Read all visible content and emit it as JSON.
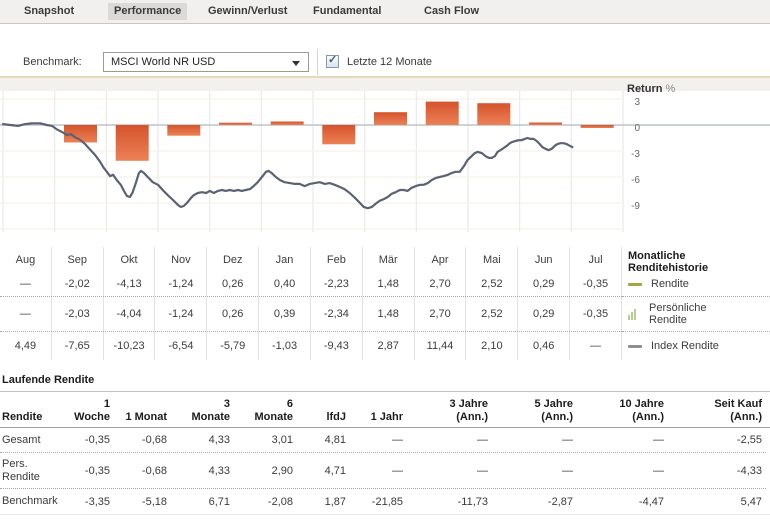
{
  "tabs": {
    "items": [
      {
        "label": "Snapshot",
        "active": false
      },
      {
        "label": "Performance",
        "active": true
      },
      {
        "label": "Gewinn/Verlust",
        "active": false
      },
      {
        "label": "Fundamental",
        "active": false
      },
      {
        "label": "Cash Flow",
        "active": false
      }
    ]
  },
  "benchmark": {
    "label": "Benchmark:",
    "selected": "MSCI World NR USD",
    "checkbox_label": "Letzte 12 Monate",
    "checked": true
  },
  "chart_data": {
    "type": "bar+line",
    "y_axis_title": "Return",
    "y_axis_unit": "%",
    "y_ticks": [
      3,
      0,
      -3,
      -6,
      -9
    ],
    "ylim": [
      -12.4,
      3.9
    ],
    "grid": true,
    "legend_position": "right-of-table",
    "categories": [
      "Aug",
      "Sep",
      "Okt",
      "Nov",
      "Dez",
      "Jan",
      "Feb",
      "Mär",
      "Apr",
      "Mai",
      "Jun",
      "Jul"
    ],
    "bar_series": {
      "name": "Rendite",
      "color_top": "#d5532c",
      "color_bottom": "#ec8156",
      "values": [
        null,
        -2.02,
        -4.13,
        -1.24,
        0.26,
        0.4,
        -2.23,
        1.48,
        2.7,
        2.52,
        0.29,
        -0.35
      ]
    },
    "line_series": {
      "name": "Index Rendite",
      "color": "#5a6274",
      "points": [
        [
          0,
          0.1
        ],
        [
          0.14,
          0
        ],
        [
          0.29,
          -0.1
        ],
        [
          0.43,
          0.1
        ],
        [
          0.56,
          0.2
        ],
        [
          0.72,
          0.2
        ],
        [
          0.85,
          0
        ],
        [
          0.95,
          -0.1
        ],
        [
          1.04,
          -0.5
        ],
        [
          1.14,
          -0.8
        ],
        [
          1.24,
          -1.15
        ],
        [
          1.32,
          -1.05
        ],
        [
          1.39,
          -1.4
        ],
        [
          1.49,
          -1.7
        ],
        [
          1.59,
          -2.2
        ],
        [
          1.68,
          -2.8
        ],
        [
          1.78,
          -3.45
        ],
        [
          1.88,
          -4.25
        ],
        [
          1.95,
          -4.95
        ],
        [
          2.01,
          -5.4
        ],
        [
          2.07,
          -5.9
        ],
        [
          2.13,
          -5.75
        ],
        [
          2.2,
          -6.35
        ],
        [
          2.28,
          -6.9
        ],
        [
          2.34,
          -7.6
        ],
        [
          2.4,
          -8.2
        ],
        [
          2.46,
          -8.3
        ],
        [
          2.51,
          -7.75
        ],
        [
          2.57,
          -6.7
        ],
        [
          2.63,
          -5.55
        ],
        [
          2.67,
          -5.3
        ],
        [
          2.73,
          -5.55
        ],
        [
          2.8,
          -6
        ],
        [
          2.9,
          -6.6
        ],
        [
          3,
          -6.9
        ],
        [
          3.09,
          -7.5
        ],
        [
          3.19,
          -8.1
        ],
        [
          3.29,
          -8.65
        ],
        [
          3.39,
          -9.25
        ],
        [
          3.44,
          -9.45
        ],
        [
          3.5,
          -9.35
        ],
        [
          3.56,
          -9
        ],
        [
          3.64,
          -8.4
        ],
        [
          3.69,
          -8.1
        ],
        [
          3.77,
          -7.85
        ],
        [
          3.85,
          -7.75
        ],
        [
          3.93,
          -7.85
        ],
        [
          4,
          -7.6
        ],
        [
          4.08,
          -7.85
        ],
        [
          4.16,
          -7.6
        ],
        [
          4.24,
          -7.5
        ],
        [
          4.31,
          -7.6
        ],
        [
          4.39,
          -7.5
        ],
        [
          4.47,
          -7.6
        ],
        [
          4.55,
          -7.5
        ],
        [
          4.62,
          -7.6
        ],
        [
          4.7,
          -7.5
        ],
        [
          4.78,
          -7.4
        ],
        [
          4.85,
          -7.05
        ],
        [
          4.93,
          -6.6
        ],
        [
          5.01,
          -6
        ],
        [
          5.09,
          -5.4
        ],
        [
          5.14,
          -5.3
        ],
        [
          5.2,
          -5.55
        ],
        [
          5.28,
          -6
        ],
        [
          5.36,
          -6.35
        ],
        [
          5.45,
          -6.6
        ],
        [
          5.55,
          -6.7
        ],
        [
          5.65,
          -6.8
        ],
        [
          5.74,
          -6.8
        ],
        [
          5.84,
          -7.05
        ],
        [
          5.94,
          -6.8
        ],
        [
          6.03,
          -6.7
        ],
        [
          6.13,
          -6.6
        ],
        [
          6.23,
          -6.8
        ],
        [
          6.32,
          -6.7
        ],
        [
          6.42,
          -6.9
        ],
        [
          6.52,
          -7.15
        ],
        [
          6.61,
          -7.4
        ],
        [
          6.71,
          -7.85
        ],
        [
          6.81,
          -8.4
        ],
        [
          6.91,
          -9
        ],
        [
          6.98,
          -9.45
        ],
        [
          7.06,
          -9.6
        ],
        [
          7.14,
          -9.45
        ],
        [
          7.21,
          -9.1
        ],
        [
          7.29,
          -8.75
        ],
        [
          7.37,
          -8.55
        ],
        [
          7.45,
          -8.3
        ],
        [
          7.52,
          -7.95
        ],
        [
          7.6,
          -7.75
        ],
        [
          7.68,
          -7.5
        ],
        [
          7.76,
          -7.5
        ],
        [
          7.83,
          -7.6
        ],
        [
          7.91,
          -7.25
        ],
        [
          7.99,
          -7.05
        ],
        [
          8.07,
          -6.9
        ],
        [
          8.14,
          -6.9
        ],
        [
          8.22,
          -6.7
        ],
        [
          8.3,
          -6.35
        ],
        [
          8.38,
          -6.1
        ],
        [
          8.45,
          -6
        ],
        [
          8.53,
          -5.9
        ],
        [
          8.61,
          -5.75
        ],
        [
          8.68,
          -5.55
        ],
        [
          8.76,
          -5.4
        ],
        [
          8.84,
          -5.4
        ],
        [
          8.92,
          -4.75
        ],
        [
          8.99,
          -4.05
        ],
        [
          9.07,
          -3.6
        ],
        [
          9.13,
          -3.25
        ],
        [
          9.19,
          -3.1
        ],
        [
          9.27,
          -3.25
        ],
        [
          9.34,
          -3.6
        ],
        [
          9.4,
          -3.8
        ],
        [
          9.46,
          -3.8
        ],
        [
          9.52,
          -3.6
        ],
        [
          9.57,
          -3.1
        ],
        [
          9.63,
          -2.9
        ],
        [
          9.69,
          -2.65
        ],
        [
          9.75,
          -2.4
        ],
        [
          9.81,
          -2.1
        ],
        [
          9.86,
          -1.95
        ],
        [
          9.92,
          -1.85
        ],
        [
          9.98,
          -1.75
        ],
        [
          10.04,
          -1.75
        ],
        [
          10.1,
          -1.6
        ],
        [
          10.15,
          -1.5
        ],
        [
          10.21,
          -1.6
        ],
        [
          10.27,
          -1.6
        ],
        [
          10.33,
          -1.85
        ],
        [
          10.39,
          -2.2
        ],
        [
          10.44,
          -2.55
        ],
        [
          10.5,
          -2.75
        ],
        [
          10.56,
          -2.9
        ],
        [
          10.62,
          -2.75
        ],
        [
          10.68,
          -2.4
        ],
        [
          10.73,
          -2.2
        ],
        [
          10.79,
          -2.1
        ],
        [
          10.85,
          -2.1
        ],
        [
          10.91,
          -2.2
        ],
        [
          10.97,
          -2.4
        ],
        [
          11.02,
          -2.55
        ]
      ]
    },
    "colors": {
      "zero_line": "#aeb9bb",
      "v_grid": "#e8e6e1",
      "h_grid": "#f5eee4"
    }
  },
  "monthly_table": {
    "columns": [
      "Aug",
      "Sep",
      "Okt",
      "Nov",
      "Dez",
      "Jan",
      "Feb",
      "Mär",
      "Apr",
      "Mai",
      "Jun",
      "Jul"
    ],
    "rows": [
      {
        "name": "Rendite",
        "values": [
          "—",
          "-2,02",
          "-4,13",
          "-1,24",
          "0,26",
          "0,40",
          "-2,23",
          "1,48",
          "2,70",
          "2,52",
          "0,29",
          "-0,35"
        ]
      },
      {
        "name": "Persönliche Rendite",
        "values": [
          "—",
          "-2,03",
          "-4,04",
          "-1,24",
          "0,26",
          "0,39",
          "-2,34",
          "1,48",
          "2,70",
          "2,52",
          "0,29",
          "-0,35"
        ]
      },
      {
        "name": "Index Rendite",
        "values": [
          "4,49",
          "-7,65",
          "-10,23",
          "-6,54",
          "-5,79",
          "-1,03",
          "-9,43",
          "2,87",
          "11,44",
          "2,10",
          "0,46",
          "—"
        ]
      }
    ],
    "legend": {
      "title_line1": "Monatliche",
      "title_line2": "Renditehistorie",
      "entries": [
        {
          "label": "Rendite",
          "label2": "",
          "marker": "dash",
          "color": "#a8a43c"
        },
        {
          "label": "Persönliche",
          "label2": "Rendite",
          "marker": "bars",
          "color": "#b9cf92"
        },
        {
          "label": "Index Rendite",
          "label2": "",
          "marker": "dash",
          "color": "#8f8f8f"
        }
      ]
    }
  },
  "running_table": {
    "title": "Laufende Rendite",
    "headers": [
      {
        "l1": "",
        "l2": "Rendite"
      },
      {
        "l1": "1",
        "l2": "Woche"
      },
      {
        "l1": "",
        "l2": "1 Monat"
      },
      {
        "l1": "3",
        "l2": "Monate"
      },
      {
        "l1": "6",
        "l2": "Monate"
      },
      {
        "l1": "",
        "l2": "lfdJ"
      },
      {
        "l1": "",
        "l2": "1 Jahr"
      },
      {
        "l1": "3 Jahre",
        "l2": "(Ann.)"
      },
      {
        "l1": "5 Jahre",
        "l2": "(Ann.)"
      },
      {
        "l1": "10 Jahre",
        "l2": "(Ann.)"
      },
      {
        "l1": "Seit Kauf",
        "l2": "(Ann.)"
      }
    ],
    "rows": [
      {
        "label": "Gesamt",
        "values": [
          "-0,35",
          "-0,68",
          "4,33",
          "3,01",
          "4,81",
          "—",
          "—",
          "—",
          "—",
          "-2,55"
        ]
      },
      {
        "label": "Pers. Rendite",
        "values": [
          "-0,35",
          "-0,68",
          "4,33",
          "2,90",
          "4,71",
          "—",
          "—",
          "—",
          "—",
          "-4,33"
        ]
      },
      {
        "label": "Benchmark",
        "values": [
          "-3,35",
          "-5,18",
          "6,71",
          "-2,08",
          "1,87",
          "-21,85",
          "-11,73",
          "-2,87",
          "-4,47",
          "5,47"
        ]
      }
    ]
  }
}
